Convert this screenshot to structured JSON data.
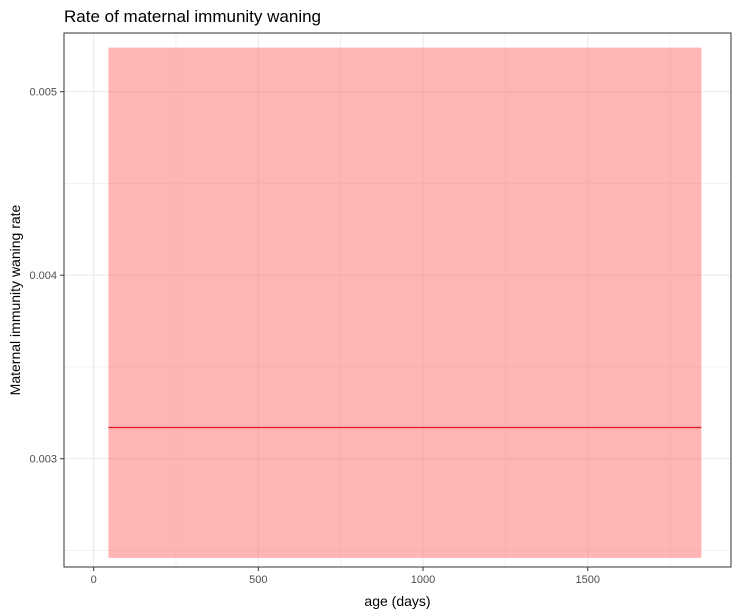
{
  "chart_data": {
    "type": "area",
    "title": "Rate of maternal immunity waning",
    "xlabel": "age (days)",
    "ylabel": "Maternal immunity waning rate",
    "xlim": [
      -90,
      1935
    ],
    "ylim": [
      0.00241,
      0.00532
    ],
    "x_ticks": [
      0,
      500,
      1000,
      1500
    ],
    "x_tick_labels": [
      "0",
      "500",
      "1000",
      "1500"
    ],
    "y_ticks": [
      0.003,
      0.004,
      0.005
    ],
    "y_tick_labels": [
      "0.003",
      "0.004",
      "0.005"
    ],
    "grid": true,
    "legend": "none",
    "series": [
      {
        "x": [
          45,
          1845
        ],
        "y": [
          0.00317,
          0.00317
        ],
        "ymin": [
          0.00246,
          0.00246
        ],
        "ymax": [
          0.00524,
          0.00524
        ]
      }
    ],
    "colors": {
      "line": "#e41a1c",
      "ribbon": "#ff6b6b",
      "ribbon_opacity": 0.5,
      "grid": "#ebebeb",
      "panel_border": "#333333",
      "tick_text": "#4d4d4d"
    }
  }
}
